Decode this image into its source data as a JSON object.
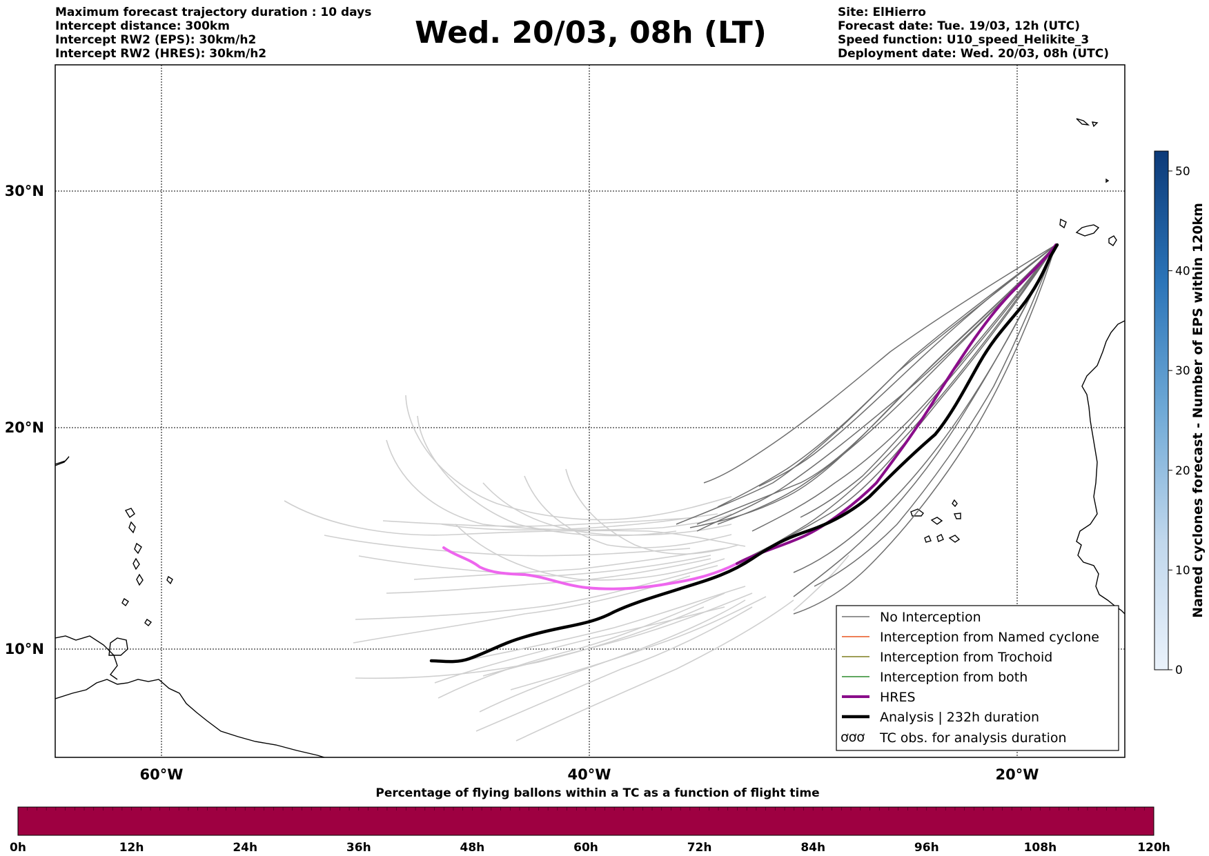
{
  "header": {
    "left_lines": [
      "Maximum forecast trajectory duration : 10 days",
      "Intercept distance: 300km",
      "Intercept RW2 (EPS):  30km/h2",
      "Intercept RW2 (HRES): 30km/h2"
    ],
    "title": "Wed. 20/03, 08h (LT)",
    "right_lines": [
      "Site: ElHierro",
      "Forecast date: Tue. 19/03, 12h (UTC)",
      "Speed function: U10_speed_Helikite_3",
      "Deployment date: Wed. 20/03, 08h (UTC)"
    ]
  },
  "map": {
    "lat_labels": [
      "30°N",
      "20°N",
      "10°N"
    ],
    "lon_labels": [
      "60°W",
      "40°W",
      "20°W"
    ],
    "colors": {
      "eps_no_interception": "#707070",
      "eps_far": "#cfcfcf",
      "hres_near": "#8a0d8a",
      "hres_far": "#ee66ee",
      "analysis": "#000000",
      "named_cyclone": "#e8541e",
      "trochoid": "#7d7d1e",
      "both": "#2a8a2a"
    }
  },
  "legend": {
    "items": [
      "No Interception",
      "Interception from Named cyclone",
      "Interception from Trochoid",
      "Interception from both",
      "HRES",
      "Analysis | 232h duration",
      "TC obs. for analysis duration"
    ],
    "tc_symbol": "ơơơ"
  },
  "colorbar_right": {
    "label": "Named cyclones forecast - Number of EPS within 120km",
    "ticks": [
      "0",
      "10",
      "20",
      "30",
      "40",
      "50"
    ],
    "range": [
      0,
      52
    ],
    "color_low": "#e3edf8",
    "color_high": "#0c3a78"
  },
  "colorbar_bottom": {
    "title": "Percentage of flying ballons within a TC as a function of flight time",
    "ticks": [
      "0h",
      "12h",
      "24h",
      "36h",
      "48h",
      "60h",
      "72h",
      "84h",
      "96h",
      "108h",
      "120h"
    ],
    "fill_color": "#9e0041"
  }
}
